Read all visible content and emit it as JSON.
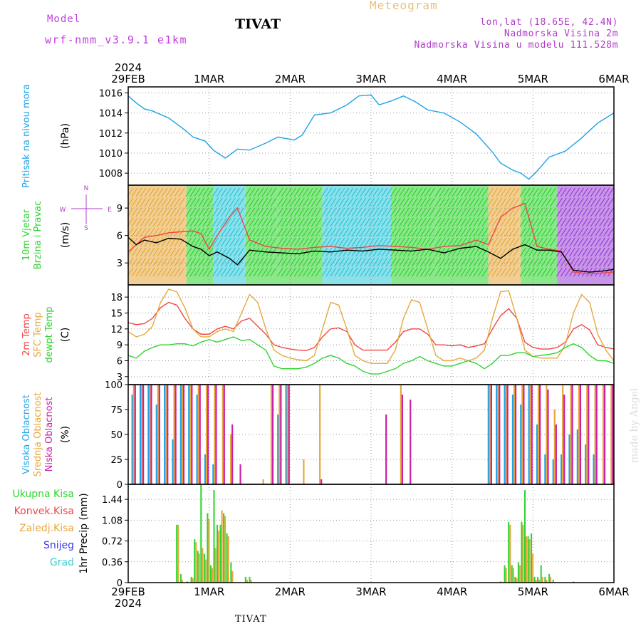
{
  "header": {
    "model_label": "Model",
    "model_name": "wrf-nmm_v3.9.1 e1km",
    "station": "TIVAT",
    "product": "Meteogram",
    "lonlat": "lon,lat (18.65E, 42.4N)",
    "elevation": "Nadmorska Visina 2m",
    "model_elevation": "Nadmorska Visina u modelu 111.528m",
    "footer_station": "TIVAT",
    "watermark": "made by Angel"
  },
  "colors": {
    "blue": "#1fa3e6",
    "green": "#2ed42e",
    "red": "#ef4747",
    "orange": "#e6a83c",
    "magenta": "#cc1fa8",
    "purple": "#9a40d6",
    "cyan": "#2cc6d8",
    "snow": "#3a3ae0",
    "grad": "#3ccfcf"
  },
  "time_axis": {
    "top_year": "2024",
    "bottom_year": "2024",
    "labels": [
      "29FEB",
      "1MAR",
      "2MAR",
      "3MAR",
      "4MAR",
      "5MAR",
      "6MAR"
    ]
  },
  "chart_data": [
    {
      "id": "pressure",
      "type": "line",
      "ylabel_lines": [
        "Pritisak na nivou mora"
      ],
      "unit": "(hPa)",
      "yticks": [
        "1016",
        "1014",
        "1012",
        "1010",
        "1008"
      ],
      "ylim": [
        1006.8,
        1016.6
      ],
      "x_day": [
        0,
        0.1,
        0.2,
        0.3,
        0.5,
        0.7,
        0.8,
        0.95,
        1.05,
        1.2,
        1.35,
        1.5,
        1.7,
        1.85,
        2.05,
        2.15,
        2.3,
        2.5,
        2.7,
        2.85,
        3.0,
        3.1,
        3.25,
        3.4,
        3.55,
        3.7,
        3.9,
        4.1,
        4.3,
        4.5,
        4.6,
        4.75,
        4.85,
        4.95,
        5.05,
        5.2,
        5.4,
        5.6,
        5.8,
        6.0
      ],
      "series": [
        {
          "name": "",
          "color_key": "blue",
          "values": [
            1015.7,
            1015.0,
            1014.4,
            1014.2,
            1013.5,
            1012.3,
            1011.6,
            1011.2,
            1010.3,
            1009.5,
            1010.4,
            1010.3,
            1011.0,
            1011.6,
            1011.3,
            1011.8,
            1013.8,
            1014.0,
            1014.8,
            1015.7,
            1015.8,
            1014.8,
            1015.2,
            1015.7,
            1015.1,
            1014.3,
            1014.0,
            1013.1,
            1011.9,
            1010.1,
            1009.0,
            1008.3,
            1008.0,
            1007.4,
            1008.2,
            1009.6,
            1010.2,
            1011.5,
            1013.0,
            1014.0
          ]
        }
      ],
      "grid": true
    },
    {
      "id": "wind",
      "type": "line",
      "ylabel_lines": [
        "10m Vjetar",
        "Brzina i Pravac"
      ],
      "unit": "(m/s)",
      "compass": {
        "n": "N",
        "s": "S",
        "w": "W",
        "e": "E"
      },
      "yticks": [
        "9",
        "6",
        "3"
      ],
      "ylim": [
        0.6,
        11.5
      ],
      "x_day": [
        0,
        0.1,
        0.2,
        0.35,
        0.5,
        0.65,
        0.8,
        0.9,
        1.0,
        1.1,
        1.25,
        1.35,
        1.5,
        1.7,
        1.9,
        2.1,
        2.3,
        2.5,
        2.7,
        2.9,
        3.1,
        3.3,
        3.5,
        3.7,
        3.9,
        4.1,
        4.3,
        4.45,
        4.6,
        4.75,
        4.9,
        5.05,
        5.2,
        5.35,
        5.5,
        5.7,
        5.85,
        6.0
      ],
      "series": [
        {
          "name": "",
          "color_key": "red",
          "values": [
            4.2,
            5.0,
            5.8,
            6.0,
            6.3,
            6.4,
            6.5,
            6.2,
            4.5,
            6.0,
            8.0,
            9.0,
            5.5,
            4.8,
            4.6,
            4.5,
            4.7,
            4.8,
            4.6,
            4.7,
            4.9,
            4.8,
            4.7,
            4.5,
            4.8,
            4.9,
            5.5,
            5.0,
            8.0,
            9.0,
            9.5,
            4.8,
            4.5,
            4.3,
            2.0,
            1.8,
            1.9,
            2.0
          ]
        },
        {
          "name": "",
          "color_key": "black",
          "values": [
            5.8,
            5.0,
            5.5,
            5.2,
            5.7,
            5.6,
            4.8,
            4.5,
            3.8,
            4.2,
            3.5,
            2.8,
            4.4,
            4.2,
            4.1,
            4.0,
            4.3,
            4.2,
            4.4,
            4.3,
            4.5,
            4.4,
            4.3,
            4.5,
            4.1,
            4.6,
            4.8,
            4.2,
            3.5,
            4.5,
            5.0,
            4.4,
            4.4,
            4.2,
            2.2,
            2.0,
            2.1,
            2.3
          ]
        }
      ],
      "direction_bands": [
        {
          "from_day": 0.0,
          "to_day": 0.72,
          "color_key": "orange"
        },
        {
          "from_day": 0.72,
          "to_day": 1.05,
          "color_key": "green"
        },
        {
          "from_day": 1.05,
          "to_day": 1.45,
          "color_key": "cyan"
        },
        {
          "from_day": 1.45,
          "to_day": 1.85,
          "color_key": "green"
        },
        {
          "from_day": 1.85,
          "to_day": 2.4,
          "color_key": "green"
        },
        {
          "from_day": 2.4,
          "to_day": 3.25,
          "color_key": "cyan"
        },
        {
          "from_day": 3.25,
          "to_day": 3.8,
          "color_key": "green"
        },
        {
          "from_day": 3.8,
          "to_day": 4.45,
          "color_key": "green"
        },
        {
          "from_day": 4.45,
          "to_day": 4.85,
          "color_key": "orange"
        },
        {
          "from_day": 4.85,
          "to_day": 5.3,
          "color_key": "green"
        },
        {
          "from_day": 5.3,
          "to_day": 6.0,
          "color_key": "purple"
        }
      ],
      "grid": true
    },
    {
      "id": "temperature",
      "type": "line",
      "ylabel_lines": [
        "2m Temp",
        "SFC Temp",
        "dewpt Temp"
      ],
      "unit": "(C)",
      "yticks": [
        "18",
        "15",
        "12",
        "9",
        "6",
        "3"
      ],
      "ylim": [
        1.5,
        20.3
      ],
      "x_day": [
        0,
        0.1,
        0.2,
        0.3,
        0.4,
        0.5,
        0.6,
        0.7,
        0.8,
        0.9,
        1.0,
        1.1,
        1.2,
        1.3,
        1.4,
        1.5,
        1.6,
        1.7,
        1.8,
        1.9,
        2.0,
        2.1,
        2.2,
        2.3,
        2.4,
        2.5,
        2.6,
        2.7,
        2.8,
        2.9,
        3.0,
        3.1,
        3.2,
        3.3,
        3.4,
        3.5,
        3.6,
        3.7,
        3.8,
        3.9,
        4.0,
        4.1,
        4.2,
        4.3,
        4.4,
        4.5,
        4.6,
        4.7,
        4.8,
        4.9,
        5.0,
        5.1,
        5.2,
        5.3,
        5.4,
        5.5,
        5.6,
        5.7,
        5.8,
        5.9,
        6.0
      ],
      "series": [
        {
          "name": "",
          "color_key": "red",
          "values": [
            13.2,
            12.8,
            13.0,
            14.0,
            16.0,
            17.0,
            16.5,
            14.0,
            12.0,
            11.0,
            11.0,
            12.0,
            12.5,
            12.0,
            13.5,
            14.0,
            12.5,
            11.0,
            9.0,
            8.5,
            8.2,
            8.0,
            7.9,
            8.5,
            10.5,
            12.0,
            12.2,
            11.5,
            9.0,
            8.0,
            8.0,
            8.0,
            8.0,
            9.5,
            11.5,
            12.0,
            12.0,
            11.0,
            9.0,
            9.0,
            8.8,
            9.0,
            8.5,
            8.8,
            9.2,
            12.0,
            14.5,
            15.8,
            14.0,
            9.5,
            8.5,
            8.2,
            8.2,
            8.5,
            9.5,
            12.0,
            12.8,
            11.8,
            9.0,
            8.5,
            8.2
          ]
        },
        {
          "name": "",
          "color_key": "orange",
          "values": [
            11.5,
            10.5,
            11.0,
            12.5,
            17.0,
            19.5,
            19.0,
            16.0,
            12.0,
            10.5,
            10.5,
            11.5,
            12.0,
            11.5,
            15.0,
            18.5,
            17.0,
            12.0,
            8.0,
            7.0,
            6.5,
            6.2,
            6.0,
            7.0,
            12.0,
            17.0,
            16.5,
            12.0,
            7.0,
            6.0,
            5.5,
            5.5,
            5.5,
            8.0,
            14.0,
            17.5,
            17.0,
            12.0,
            7.0,
            6.0,
            6.0,
            6.5,
            6.0,
            6.5,
            8.0,
            14.0,
            19.0,
            19.2,
            14.0,
            8.0,
            6.8,
            6.5,
            6.5,
            6.5,
            9.0,
            15.0,
            18.5,
            17.0,
            11.0,
            8.0,
            6.0
          ]
        },
        {
          "name": "",
          "color_key": "green",
          "values": [
            7.0,
            6.5,
            7.8,
            8.5,
            9.0,
            9.0,
            9.2,
            9.2,
            8.8,
            9.5,
            10.0,
            9.5,
            10.0,
            10.5,
            9.8,
            10.0,
            9.0,
            8.0,
            5.0,
            4.5,
            4.5,
            4.5,
            4.8,
            5.5,
            6.5,
            7.0,
            6.5,
            5.5,
            5.0,
            4.0,
            3.5,
            3.5,
            4.0,
            4.5,
            5.5,
            6.0,
            6.8,
            6.0,
            5.5,
            5.0,
            5.0,
            5.5,
            6.0,
            5.5,
            4.5,
            5.5,
            7.0,
            7.0,
            7.5,
            7.5,
            6.8,
            7.0,
            7.2,
            7.5,
            8.5,
            9.2,
            8.5,
            7.0,
            6.0,
            6.0,
            5.5
          ]
        }
      ],
      "grid": true
    },
    {
      "id": "clouds",
      "type": "bar",
      "ylabel_lines": [
        "Visoka Oblacnost",
        "Srednja Oblacnost",
        "Niska Oblacnost"
      ],
      "unit": "(%)",
      "yticks": [
        "100",
        "75",
        "50",
        "25",
        "0"
      ],
      "ylim": [
        0,
        100
      ],
      "x_day": [
        0.05,
        0.15,
        0.25,
        0.35,
        0.45,
        0.55,
        0.65,
        0.75,
        0.85,
        0.95,
        1.05,
        1.15,
        1.25,
        1.35,
        1.45,
        1.55,
        1.65,
        1.75,
        1.85,
        1.95,
        2.05,
        2.15,
        2.25,
        2.35,
        2.45,
        2.55,
        2.65,
        2.75,
        2.85,
        2.95,
        3.05,
        3.15,
        3.25,
        3.35,
        3.45,
        3.55,
        3.65,
        3.75,
        3.85,
        3.95,
        4.05,
        4.15,
        4.25,
        4.35,
        4.45,
        4.55,
        4.65,
        4.75,
        4.85,
        4.95,
        5.05,
        5.15,
        5.25,
        5.35,
        5.45,
        5.55,
        5.65,
        5.75,
        5.85,
        5.95
      ],
      "series": [
        {
          "name": "",
          "color_key": "blue",
          "values": [
            90,
            100,
            100,
            80,
            100,
            45,
            100,
            100,
            90,
            30,
            20,
            0,
            0,
            0,
            0,
            0,
            0,
            0,
            70,
            100,
            0,
            0,
            0,
            0,
            0,
            0,
            0,
            0,
            0,
            0,
            0,
            0,
            0,
            0,
            0,
            0,
            0,
            0,
            0,
            0,
            0,
            0,
            0,
            0,
            100,
            100,
            100,
            90,
            80,
            100,
            60,
            30,
            25,
            30,
            50,
            55,
            40,
            30,
            0,
            0
          ]
        },
        {
          "name": "",
          "color_key": "orange",
          "values": [
            100,
            100,
            100,
            100,
            100,
            100,
            100,
            100,
            100,
            100,
            100,
            100,
            50,
            0,
            0,
            0,
            5,
            100,
            100,
            100,
            0,
            25,
            0,
            100,
            0,
            0,
            0,
            0,
            0,
            0,
            0,
            0,
            0,
            100,
            0,
            0,
            0,
            0,
            0,
            0,
            0,
            0,
            0,
            0,
            100,
            100,
            100,
            100,
            100,
            100,
            100,
            100,
            75,
            100,
            100,
            100,
            100,
            100,
            100,
            100
          ]
        },
        {
          "name": "",
          "color_key": "magenta",
          "values": [
            100,
            100,
            100,
            100,
            100,
            100,
            100,
            100,
            100,
            100,
            100,
            100,
            60,
            20,
            0,
            0,
            0,
            100,
            100,
            100,
            0,
            0,
            0,
            5,
            0,
            0,
            0,
            0,
            0,
            0,
            0,
            70,
            0,
            90,
            85,
            0,
            0,
            0,
            0,
            0,
            0,
            0,
            0,
            0,
            100,
            100,
            100,
            100,
            100,
            100,
            100,
            95,
            60,
            90,
            100,
            100,
            100,
            100,
            100,
            100
          ]
        }
      ],
      "grid": true
    },
    {
      "id": "precip",
      "type": "bar",
      "ylabel_lines": [
        "Ukupna Kisa",
        "Konvek.Kisa",
        "Zaledj.Kisa",
        "Snijeg",
        "Grad"
      ],
      "unit": "1hr Precip (mm)",
      "yticks": [
        "1.44",
        "1.08",
        "0.72",
        "0.36",
        "0"
      ],
      "ylim": [
        0,
        1.7
      ],
      "x_day": [
        0.6,
        0.65,
        0.73,
        0.78,
        0.82,
        0.86,
        0.9,
        0.94,
        0.98,
        1.02,
        1.06,
        1.1,
        1.14,
        1.18,
        1.22,
        1.27,
        1.45,
        1.5,
        4.6,
        4.65,
        4.7,
        4.74,
        4.78,
        4.82,
        4.86,
        4.9,
        4.94,
        4.98,
        5.02,
        5.06,
        5.1,
        5.15,
        5.2,
        5.25,
        5.5
      ],
      "series": [
        {
          "name": "",
          "color_key": "green",
          "values": [
            1.0,
            0.15,
            0.02,
            0.1,
            0.75,
            0.55,
            1.7,
            0.5,
            1.2,
            0.3,
            1.6,
            1.0,
            1.0,
            1.2,
            0.85,
            0.35,
            0.1,
            0.1,
            0.02,
            0.3,
            1.05,
            0.3,
            0.1,
            0.35,
            1.05,
            1.6,
            0.8,
            0.85,
            0.1,
            0.1,
            0.3,
            0.1,
            0.15,
            0.05,
            0.02
          ]
        },
        {
          "name": "",
          "color_key": "orange",
          "values": [
            1.0,
            0.05,
            0.0,
            0.08,
            0.7,
            0.5,
            0.6,
            0.4,
            1.1,
            0.25,
            0.6,
            0.9,
            1.25,
            1.15,
            0.8,
            0.2,
            0.05,
            0.05,
            0.0,
            0.25,
            1.0,
            0.25,
            0.08,
            0.3,
            1.0,
            0.8,
            0.75,
            0.5,
            0.05,
            0.05,
            0.1,
            0.05,
            0.1,
            0.0,
            0.0
          ]
        }
      ],
      "grid": true
    }
  ]
}
